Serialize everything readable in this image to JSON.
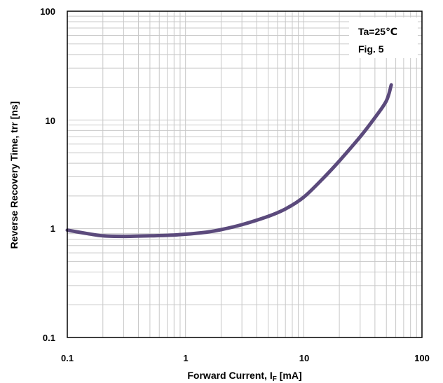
{
  "chart_data": {
    "type": "line",
    "xscale": "log",
    "yscale": "log",
    "xlim": [
      0.1,
      100
    ],
    "ylim": [
      0.1,
      100
    ],
    "x_ticks": [
      "0.1",
      "1",
      "10",
      "100"
    ],
    "y_ticks": [
      "100",
      "10",
      "1",
      "0.1"
    ],
    "xlabel": {
      "prefix": "Forward Current, I",
      "subscript": "F",
      "suffix": " [mA]"
    },
    "ylabel": "Reverse Recovery Time,  trr [ns]",
    "grid": true,
    "annotations": [
      "Ta=25℃",
      "Fig. 5"
    ],
    "annotation_position": "top-right",
    "series": [
      {
        "color": "#5b4a7c",
        "x": [
          0.1,
          0.15,
          0.2,
          0.3,
          0.5,
          0.7,
          1,
          1.5,
          2,
          3,
          5,
          7,
          10,
          15,
          20,
          30,
          40,
          50,
          55
        ],
        "y": [
          0.97,
          0.9,
          0.86,
          0.85,
          0.86,
          0.87,
          0.89,
          0.93,
          0.98,
          1.09,
          1.3,
          1.52,
          1.95,
          3.0,
          4.2,
          7.0,
          10.5,
          15.0,
          21.0
        ]
      }
    ]
  }
}
